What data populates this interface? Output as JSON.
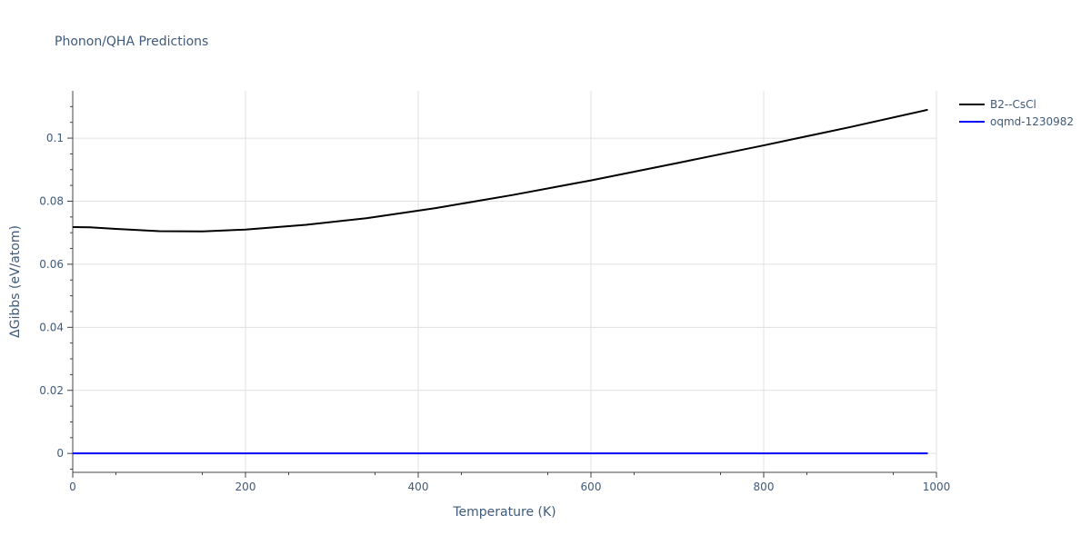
{
  "chart_data": {
    "type": "line",
    "title": "Phonon/QHA Predictions",
    "xlabel": "Temperature (K)",
    "ylabel": "ΔGibbs (eV/atom)",
    "xlim": [
      0,
      1000
    ],
    "ylim": [
      -0.006,
      0.115
    ],
    "x_ticks": [
      0,
      200,
      400,
      600,
      800,
      1000
    ],
    "x_tick_labels": [
      "0",
      "200",
      "400",
      "600",
      "800",
      "1000"
    ],
    "y_ticks": [
      0,
      0.02,
      0.04,
      0.06,
      0.08,
      0.1
    ],
    "y_tick_labels": [
      "0",
      "0.02",
      "0.04",
      "0.06",
      "0.08",
      "0.1"
    ],
    "grid": true,
    "legend_position": "top-right, outside plot",
    "series": [
      {
        "name": "B2--CsCl",
        "color": "#000000",
        "x": [
          0,
          20,
          50,
          100,
          150,
          200,
          270,
          340,
          420,
          510,
          600,
          700,
          800,
          900,
          990
        ],
        "y": [
          0.0718,
          0.0717,
          0.0712,
          0.0705,
          0.0704,
          0.071,
          0.0725,
          0.0746,
          0.0778,
          0.082,
          0.0866,
          0.0921,
          0.0977,
          0.1035,
          0.109
        ]
      },
      {
        "name": "oqmd-1230982",
        "color": "#0000ff",
        "x": [
          0,
          990
        ],
        "y": [
          0,
          0
        ]
      }
    ]
  }
}
